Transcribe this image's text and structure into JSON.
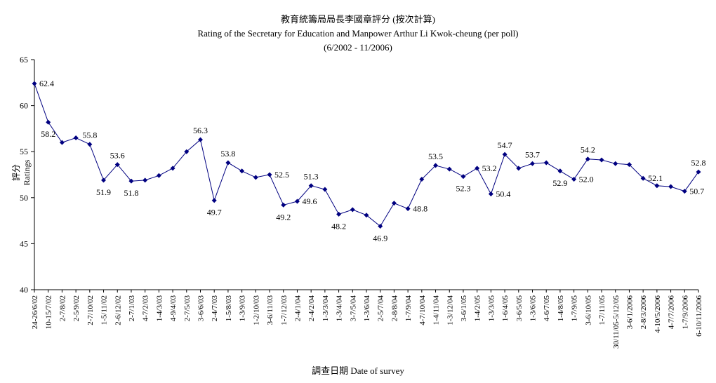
{
  "chart_data": {
    "type": "line",
    "title": "教育統籌局局長李國章評分 (按次計算)",
    "subtitle": "Rating of the Secretary for Education and Manpower Arthur Li Kwok-cheung  (per poll)",
    "period": "(6/2002 - 11/2006)",
    "xlabel": "調查日期 Date of survey",
    "ylabel": "評分 Ratings",
    "ylim": [
      40,
      65
    ],
    "yticks": [
      40,
      45,
      50,
      55,
      60,
      65
    ],
    "grid": false,
    "marker": "diamond",
    "series_color": "#000080",
    "categories": [
      "24-26/6/02",
      "10-15/7/02",
      "2-7/8/02",
      "2-5/9/02",
      "2-7/10/02",
      "1-5/11/02",
      "2-6/12/02",
      "2-7/1/03",
      "4-7/2/03",
      "1-4/3/03",
      "4-9/4/03",
      "2-7/5/03",
      "3-6/6/03",
      "2-4/7/03",
      "1-5/8/03",
      "1-3/9/03",
      "1-2/10/03",
      "3-6/11/03",
      "1-7/12/03",
      "2-4/1/04",
      "2-4/2/04",
      "1-3/3/04",
      "1-3/4/04",
      "3-7/5/04",
      "1-3/6/04",
      "2-5/7/04",
      "2-8/8/04",
      "1-7/9/04",
      "4-7/10/04",
      "1-4/11/04",
      "1-3/12/04",
      "3-6/1/05",
      "1-4/2/05",
      "1-3/3/05",
      "1-6/4/05",
      "3-6/5/05",
      "1-3/6/05",
      "4-6/7/05",
      "1-4/8/05",
      "1-7/9/05",
      "3-6/10/05",
      "1-7/11/05",
      "30/11/05-5/12/05",
      "3-6/1/2006",
      "2-8/3/2006",
      "4-10/5/2006",
      "4-7/7/2006",
      "1-7/9/2006",
      "6-10/11/2006"
    ],
    "values": [
      62.4,
      58.2,
      56.0,
      56.5,
      55.8,
      51.9,
      53.6,
      51.8,
      51.9,
      52.4,
      53.2,
      55.0,
      56.3,
      49.7,
      53.8,
      52.9,
      52.2,
      52.5,
      49.2,
      49.6,
      51.3,
      50.9,
      48.2,
      48.7,
      48.1,
      46.9,
      49.4,
      48.8,
      52.0,
      53.5,
      53.1,
      52.3,
      53.2,
      50.4,
      54.7,
      53.2,
      53.7,
      53.8,
      52.9,
      52.0,
      54.2,
      54.1,
      53.7,
      53.6,
      52.1,
      51.3,
      51.2,
      50.7,
      52.8
    ],
    "labels": [
      {
        "i": 0,
        "text": "62.4",
        "pos": "right"
      },
      {
        "i": 1,
        "text": "58.2",
        "pos": "below"
      },
      {
        "i": 4,
        "text": "55.8",
        "pos": "above"
      },
      {
        "i": 5,
        "text": "51.9",
        "pos": "below"
      },
      {
        "i": 6,
        "text": "53.6",
        "pos": "above"
      },
      {
        "i": 7,
        "text": "51.8",
        "pos": "below"
      },
      {
        "i": 12,
        "text": "56.3",
        "pos": "above"
      },
      {
        "i": 13,
        "text": "49.7",
        "pos": "below"
      },
      {
        "i": 14,
        "text": "53.8",
        "pos": "above"
      },
      {
        "i": 17,
        "text": "52.5",
        "pos": "right"
      },
      {
        "i": 18,
        "text": "49.2",
        "pos": "below"
      },
      {
        "i": 19,
        "text": "49.6",
        "pos": "right"
      },
      {
        "i": 20,
        "text": "51.3",
        "pos": "above"
      },
      {
        "i": 22,
        "text": "48.2",
        "pos": "below"
      },
      {
        "i": 25,
        "text": "46.9",
        "pos": "below"
      },
      {
        "i": 27,
        "text": "48.8",
        "pos": "right"
      },
      {
        "i": 29,
        "text": "53.5",
        "pos": "above"
      },
      {
        "i": 31,
        "text": "52.3",
        "pos": "below"
      },
      {
        "i": 32,
        "text": "53.2",
        "pos": "right"
      },
      {
        "i": 33,
        "text": "50.4",
        "pos": "right"
      },
      {
        "i": 34,
        "text": "54.7",
        "pos": "above"
      },
      {
        "i": 36,
        "text": "53.7",
        "pos": "above"
      },
      {
        "i": 38,
        "text": "52.9",
        "pos": "below"
      },
      {
        "i": 39,
        "text": "52.0",
        "pos": "right"
      },
      {
        "i": 40,
        "text": "54.2",
        "pos": "above"
      },
      {
        "i": 44,
        "text": "52.1",
        "pos": "right"
      },
      {
        "i": 47,
        "text": "50.7",
        "pos": "right"
      },
      {
        "i": 48,
        "text": "52.8",
        "pos": "above"
      }
    ]
  }
}
